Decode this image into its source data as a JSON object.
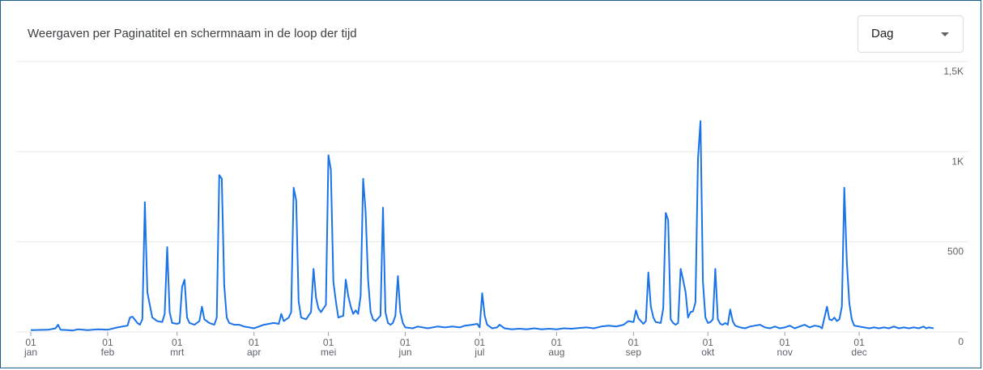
{
  "header": {
    "title": "Weergaven per Paginatitel en schermnaam in de loop der tijd"
  },
  "granularity": {
    "selected": "Dag"
  },
  "colors": {
    "line": "#1a73e8",
    "grid": "#e8eaed",
    "axis": "#5f6368"
  },
  "chart_data": {
    "type": "line",
    "title": "Weergaven per Paginatitel en schermnaam in de loop der tijd",
    "y_axis": {
      "position": "right",
      "ticks": [
        0,
        500,
        1000,
        1500
      ],
      "tick_labels": [
        "0",
        "500",
        "1K",
        "1,5K"
      ],
      "ylim": [
        0,
        1500
      ]
    },
    "x_axis": {
      "ticks": [
        {
          "day": 1,
          "label_top": "01",
          "label_bottom": "jan"
        },
        {
          "day": 32,
          "label_top": "01",
          "label_bottom": "feb"
        },
        {
          "day": 60,
          "label_top": "01",
          "label_bottom": "mrt"
        },
        {
          "day": 91,
          "label_top": "01",
          "label_bottom": "apr"
        },
        {
          "day": 121,
          "label_top": "01",
          "label_bottom": "mei"
        },
        {
          "day": 152,
          "label_top": "01",
          "label_bottom": "jun"
        },
        {
          "day": 182,
          "label_top": "01",
          "label_bottom": "jul"
        },
        {
          "day": 213,
          "label_top": "01",
          "label_bottom": "aug"
        },
        {
          "day": 244,
          "label_top": "01",
          "label_bottom": "sep"
        },
        {
          "day": 274,
          "label_top": "01",
          "label_bottom": "okt"
        },
        {
          "day": 305,
          "label_top": "01",
          "label_bottom": "nov"
        },
        {
          "day": 335,
          "label_top": "01",
          "label_bottom": "dec"
        }
      ],
      "xlim": [
        1,
        365
      ]
    },
    "grid": true,
    "series": [
      {
        "points": [
          [
            1,
            10
          ],
          [
            8,
            12
          ],
          [
            11,
            20
          ],
          [
            12,
            40
          ],
          [
            13,
            12
          ],
          [
            16,
            10
          ],
          [
            18,
            8
          ],
          [
            20,
            15
          ],
          [
            24,
            10
          ],
          [
            28,
            15
          ],
          [
            32,
            12
          ],
          [
            36,
            25
          ],
          [
            40,
            35
          ],
          [
            41,
            80
          ],
          [
            42,
            85
          ],
          [
            44,
            50
          ],
          [
            45,
            40
          ],
          [
            46,
            70
          ],
          [
            47,
            720
          ],
          [
            48,
            220
          ],
          [
            49,
            150
          ],
          [
            50,
            80
          ],
          [
            52,
            60
          ],
          [
            54,
            55
          ],
          [
            55,
            100
          ],
          [
            56,
            470
          ],
          [
            57,
            110
          ],
          [
            58,
            50
          ],
          [
            60,
            45
          ],
          [
            61,
            50
          ],
          [
            62,
            250
          ],
          [
            63,
            290
          ],
          [
            64,
            80
          ],
          [
            65,
            50
          ],
          [
            67,
            40
          ],
          [
            69,
            60
          ],
          [
            70,
            140
          ],
          [
            71,
            70
          ],
          [
            73,
            50
          ],
          [
            75,
            40
          ],
          [
            76,
            80
          ],
          [
            77,
            870
          ],
          [
            78,
            850
          ],
          [
            79,
            260
          ],
          [
            80,
            80
          ],
          [
            81,
            50
          ],
          [
            83,
            40
          ],
          [
            85,
            40
          ],
          [
            87,
            30
          ],
          [
            89,
            25
          ],
          [
            91,
            20
          ],
          [
            93,
            30
          ],
          [
            95,
            40
          ],
          [
            97,
            45
          ],
          [
            99,
            50
          ],
          [
            101,
            45
          ],
          [
            102,
            100
          ],
          [
            103,
            60
          ],
          [
            105,
            80
          ],
          [
            106,
            110
          ],
          [
            107,
            800
          ],
          [
            108,
            730
          ],
          [
            109,
            170
          ],
          [
            110,
            80
          ],
          [
            112,
            70
          ],
          [
            114,
            110
          ],
          [
            115,
            350
          ],
          [
            116,
            190
          ],
          [
            117,
            130
          ],
          [
            118,
            110
          ],
          [
            120,
            150
          ],
          [
            121,
            980
          ],
          [
            122,
            900
          ],
          [
            123,
            280
          ],
          [
            124,
            170
          ],
          [
            125,
            80
          ],
          [
            126,
            85
          ],
          [
            127,
            90
          ],
          [
            128,
            290
          ],
          [
            129,
            200
          ],
          [
            130,
            140
          ],
          [
            131,
            100
          ],
          [
            132,
            120
          ],
          [
            133,
            100
          ],
          [
            134,
            200
          ],
          [
            135,
            850
          ],
          [
            136,
            670
          ],
          [
            137,
            290
          ],
          [
            138,
            110
          ],
          [
            139,
            70
          ],
          [
            140,
            60
          ],
          [
            142,
            90
          ],
          [
            143,
            690
          ],
          [
            144,
            110
          ],
          [
            145,
            50
          ],
          [
            146,
            40
          ],
          [
            147,
            50
          ],
          [
            148,
            90
          ],
          [
            149,
            310
          ],
          [
            150,
            110
          ],
          [
            151,
            50
          ],
          [
            152,
            25
          ],
          [
            155,
            20
          ],
          [
            157,
            30
          ],
          [
            159,
            25
          ],
          [
            161,
            20
          ],
          [
            163,
            25
          ],
          [
            165,
            30
          ],
          [
            168,
            25
          ],
          [
            171,
            30
          ],
          [
            174,
            25
          ],
          [
            176,
            35
          ],
          [
            179,
            40
          ],
          [
            181,
            45
          ],
          [
            182,
            25
          ],
          [
            183,
            215
          ],
          [
            184,
            90
          ],
          [
            185,
            40
          ],
          [
            186,
            30
          ],
          [
            187,
            20
          ],
          [
            189,
            25
          ],
          [
            190,
            40
          ],
          [
            192,
            20
          ],
          [
            195,
            15
          ],
          [
            198,
            18
          ],
          [
            201,
            15
          ],
          [
            204,
            20
          ],
          [
            207,
            15
          ],
          [
            210,
            18
          ],
          [
            213,
            15
          ],
          [
            216,
            20
          ],
          [
            219,
            18
          ],
          [
            222,
            22
          ],
          [
            225,
            25
          ],
          [
            228,
            20
          ],
          [
            231,
            30
          ],
          [
            234,
            35
          ],
          [
            237,
            30
          ],
          [
            240,
            40
          ],
          [
            242,
            60
          ],
          [
            244,
            55
          ],
          [
            245,
            120
          ],
          [
            246,
            75
          ],
          [
            248,
            45
          ],
          [
            249,
            60
          ],
          [
            250,
            330
          ],
          [
            251,
            140
          ],
          [
            252,
            80
          ],
          [
            253,
            55
          ],
          [
            255,
            50
          ],
          [
            256,
            130
          ],
          [
            257,
            660
          ],
          [
            258,
            620
          ],
          [
            259,
            70
          ],
          [
            260,
            50
          ],
          [
            261,
            40
          ],
          [
            262,
            50
          ],
          [
            263,
            350
          ],
          [
            264,
            290
          ],
          [
            265,
            220
          ],
          [
            266,
            80
          ],
          [
            267,
            110
          ],
          [
            268,
            115
          ],
          [
            269,
            165
          ],
          [
            270,
            960
          ],
          [
            271,
            1170
          ],
          [
            272,
            280
          ],
          [
            273,
            80
          ],
          [
            274,
            50
          ],
          [
            275,
            55
          ],
          [
            276,
            70
          ],
          [
            277,
            350
          ],
          [
            278,
            70
          ],
          [
            279,
            45
          ],
          [
            280,
            40
          ],
          [
            281,
            50
          ],
          [
            282,
            40
          ],
          [
            283,
            125
          ],
          [
            284,
            60
          ],
          [
            285,
            35
          ],
          [
            287,
            25
          ],
          [
            289,
            20
          ],
          [
            291,
            30
          ],
          [
            293,
            35
          ],
          [
            295,
            40
          ],
          [
            297,
            25
          ],
          [
            299,
            20
          ],
          [
            301,
            30
          ],
          [
            303,
            20
          ],
          [
            305,
            25
          ],
          [
            307,
            35
          ],
          [
            309,
            20
          ],
          [
            311,
            30
          ],
          [
            313,
            40
          ],
          [
            315,
            25
          ],
          [
            317,
            35
          ],
          [
            319,
            30
          ],
          [
            320,
            20
          ],
          [
            322,
            140
          ],
          [
            323,
            70
          ],
          [
            324,
            65
          ],
          [
            325,
            80
          ],
          [
            326,
            60
          ],
          [
            327,
            70
          ],
          [
            328,
            140
          ],
          [
            329,
            800
          ],
          [
            330,
            390
          ],
          [
            331,
            160
          ],
          [
            332,
            70
          ],
          [
            333,
            35
          ],
          [
            335,
            30
          ],
          [
            337,
            25
          ],
          [
            339,
            20
          ],
          [
            341,
            25
          ],
          [
            343,
            20
          ],
          [
            345,
            25
          ],
          [
            347,
            20
          ],
          [
            349,
            30
          ],
          [
            351,
            20
          ],
          [
            353,
            25
          ],
          [
            355,
            20
          ],
          [
            357,
            25
          ],
          [
            359,
            20
          ],
          [
            361,
            30
          ],
          [
            362,
            20
          ],
          [
            363,
            25
          ],
          [
            365,
            20
          ]
        ]
      }
    ]
  }
}
